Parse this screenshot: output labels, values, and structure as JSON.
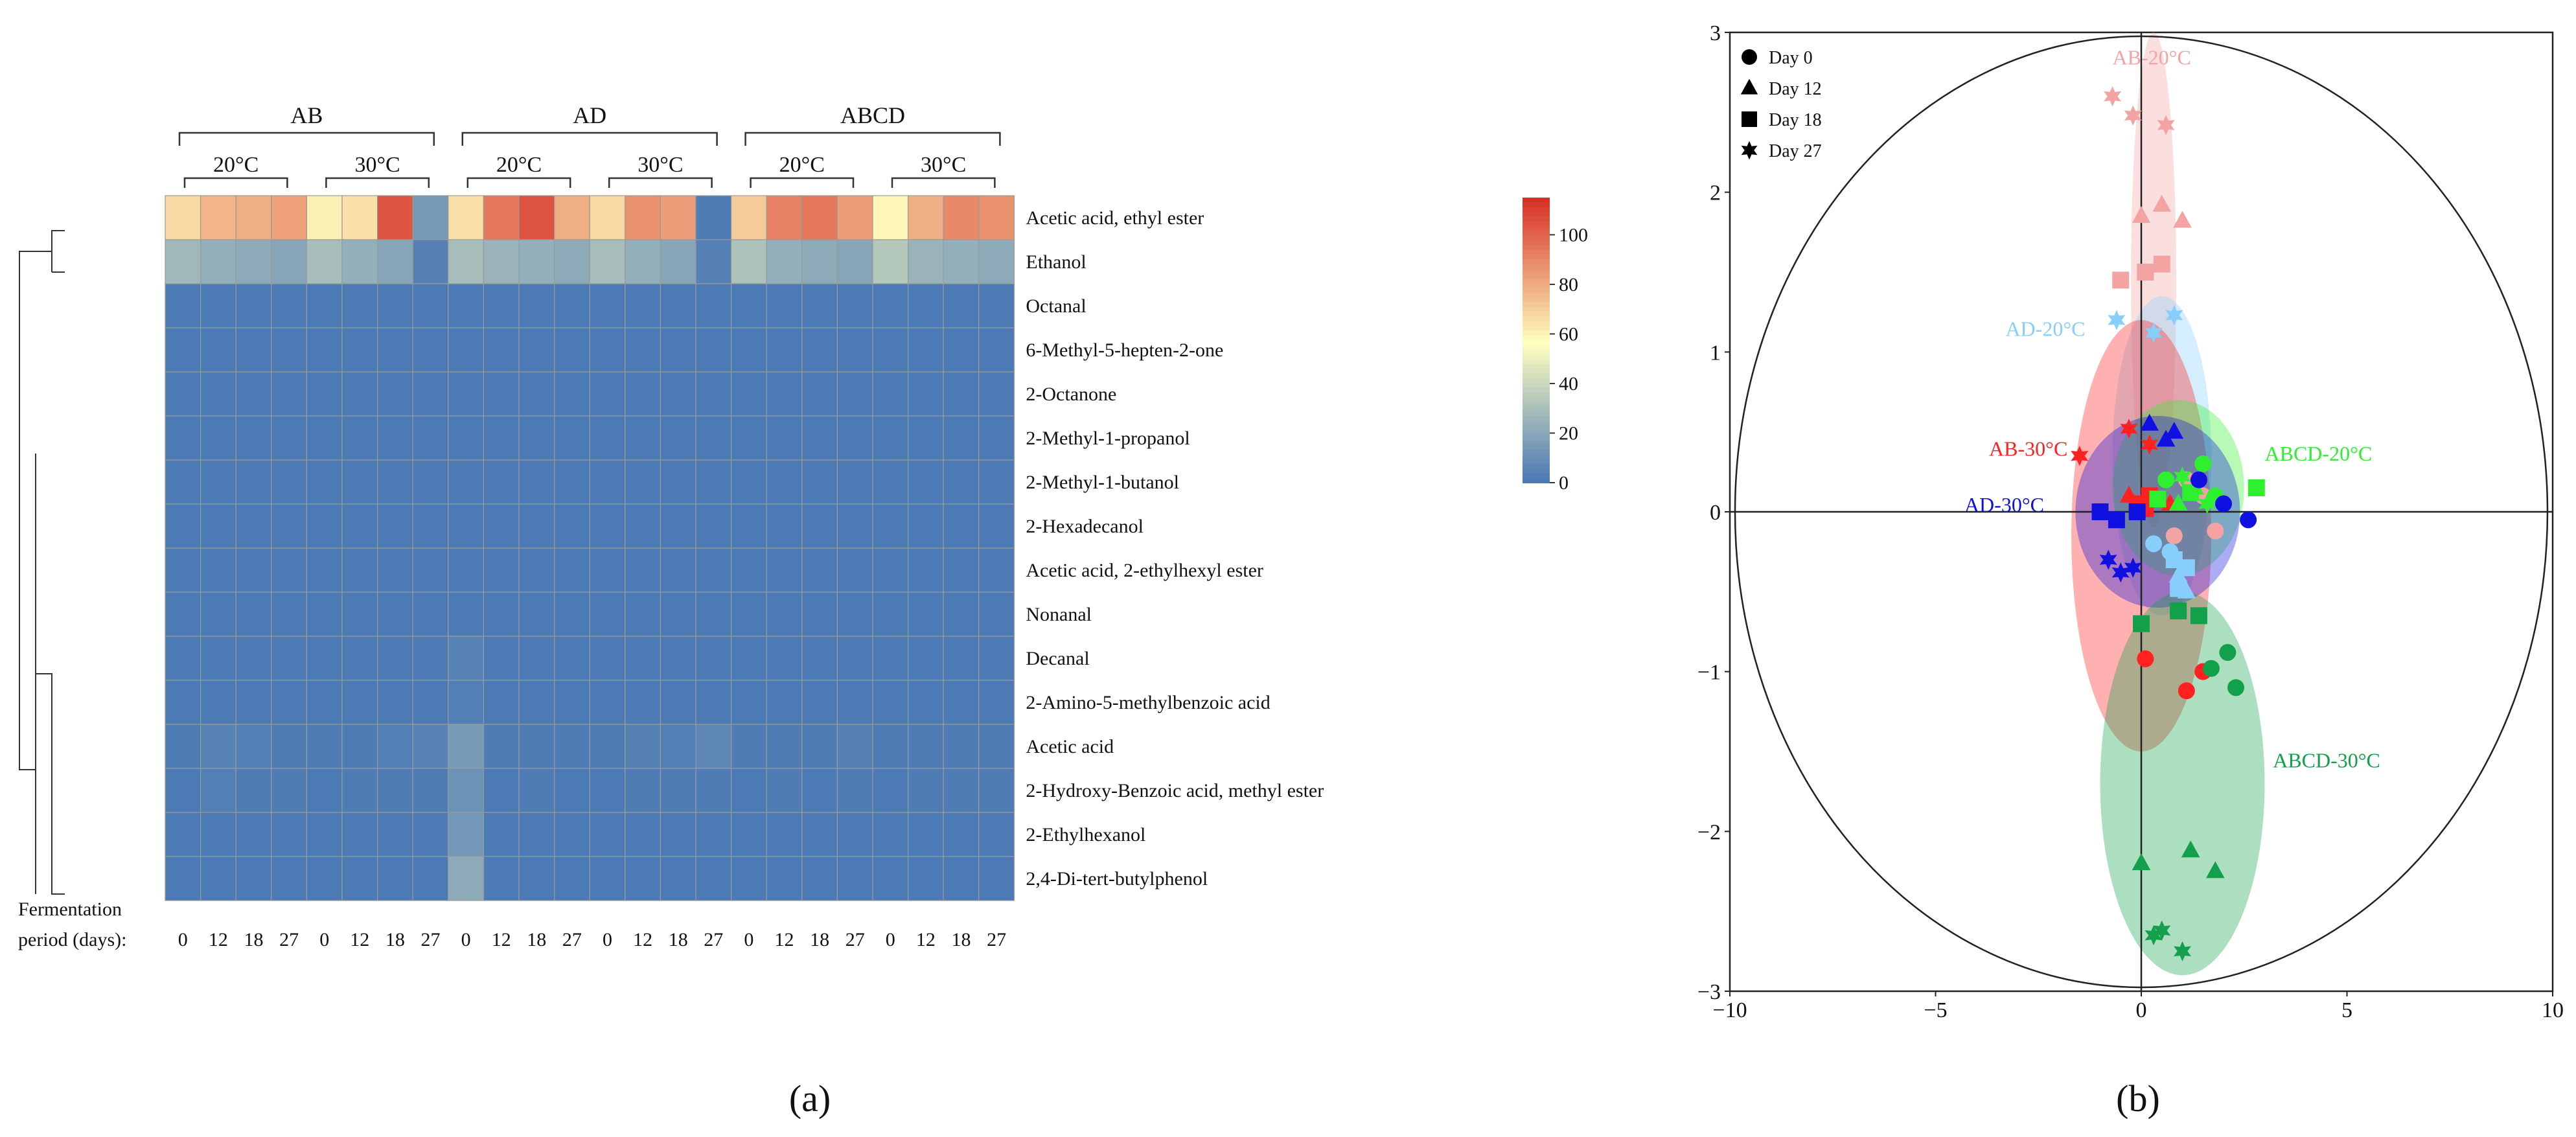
{
  "panels": {
    "a": "(a)",
    "b": "(b)"
  },
  "chart_data": [
    {
      "type": "heatmap",
      "title": "",
      "groups": [
        {
          "name": "AB",
          "temps": [
            "20°C",
            "30°C"
          ]
        },
        {
          "name": "AD",
          "temps": [
            "20°C",
            "30°C"
          ]
        },
        {
          "name": "ABCD",
          "temps": [
            "20°C",
            "30°C"
          ]
        }
      ],
      "columns": [
        "0",
        "12",
        "18",
        "27",
        "0",
        "12",
        "18",
        "27",
        "0",
        "12",
        "18",
        "27",
        "0",
        "12",
        "18",
        "27",
        "0",
        "12",
        "18",
        "27",
        "0",
        "12",
        "18",
        "27"
      ],
      "xlabel_line1": "Fermentation",
      "xlabel_line2": "period (days):",
      "rows": [
        "Acetic acid, ethyl ester",
        "Ethanol",
        "Octanal",
        "6-Methyl-5-hepten-2-one",
        "2-Octanone",
        "2-Methyl-1-propanol",
        "2-Methyl-1-butanol",
        "2-Hexadecanol",
        "Acetic acid, 2-ethylhexyl ester",
        "Nonanal",
        "Decanal",
        "2-Amino-5-methylbenzoic  acid",
        "Acetic acid",
        "2-Hydroxy-Benzoic acid, methyl ester",
        "2-Ethylhexanol",
        "2,4-Di-tert-butylphenol"
      ],
      "values": [
        [
          68,
          78,
          80,
          84,
          62,
          66,
          105,
          15,
          66,
          95,
          105,
          80,
          68,
          88,
          85,
          3,
          72,
          92,
          95,
          85,
          60,
          80,
          90,
          88
        ],
        [
          28,
          24,
          22,
          20,
          30,
          24,
          20,
          5,
          30,
          26,
          24,
          22,
          30,
          24,
          20,
          5,
          32,
          24,
          22,
          20,
          34,
          26,
          24,
          22
        ],
        [
          2,
          2,
          2,
          2,
          2,
          2,
          2,
          2,
          2,
          2,
          2,
          2,
          2,
          2,
          2,
          2,
          2,
          2,
          2,
          2,
          2,
          2,
          2,
          2
        ],
        [
          2,
          2,
          2,
          2,
          2,
          2,
          2,
          2,
          2,
          2,
          2,
          2,
          2,
          2,
          2,
          2,
          2,
          2,
          2,
          2,
          2,
          2,
          2,
          2
        ],
        [
          2,
          2,
          2,
          2,
          2,
          2,
          2,
          2,
          2,
          2,
          2,
          2,
          2,
          2,
          2,
          2,
          2,
          2,
          2,
          2,
          2,
          2,
          2,
          2
        ],
        [
          2,
          2,
          2,
          2,
          2,
          2,
          2,
          2,
          2,
          2,
          2,
          2,
          2,
          2,
          2,
          2,
          2,
          2,
          2,
          2,
          2,
          2,
          2,
          2
        ],
        [
          2,
          2,
          2,
          2,
          2,
          2,
          2,
          2,
          2,
          2,
          2,
          2,
          2,
          2,
          2,
          2,
          2,
          2,
          2,
          2,
          2,
          2,
          2,
          2
        ],
        [
          2,
          2,
          2,
          2,
          2,
          2,
          2,
          2,
          2,
          2,
          2,
          2,
          2,
          2,
          2,
          2,
          2,
          2,
          2,
          2,
          2,
          2,
          2,
          2
        ],
        [
          2,
          2,
          2,
          2,
          2,
          2,
          2,
          2,
          2,
          2,
          2,
          2,
          2,
          2,
          2,
          2,
          2,
          2,
          2,
          2,
          2,
          2,
          2,
          2
        ],
        [
          2,
          2,
          2,
          2,
          2,
          2,
          2,
          2,
          2,
          2,
          2,
          2,
          2,
          2,
          2,
          2,
          2,
          2,
          2,
          2,
          2,
          2,
          2,
          2
        ],
        [
          2,
          2,
          2,
          2,
          2,
          2,
          2,
          2,
          6,
          2,
          2,
          2,
          2,
          2,
          2,
          2,
          2,
          2,
          2,
          2,
          2,
          2,
          2,
          2
        ],
        [
          2,
          2,
          2,
          2,
          2,
          2,
          2,
          2,
          4,
          2,
          2,
          2,
          2,
          2,
          2,
          2,
          2,
          2,
          2,
          2,
          2,
          2,
          2,
          2
        ],
        [
          3,
          6,
          4,
          3,
          3,
          3,
          4,
          6,
          16,
          3,
          3,
          3,
          3,
          5,
          4,
          8,
          3,
          3,
          3,
          5,
          3,
          3,
          3,
          3
        ],
        [
          2,
          4,
          3,
          3,
          2,
          3,
          3,
          3,
          12,
          2,
          3,
          2,
          2,
          3,
          3,
          3,
          2,
          3,
          2,
          3,
          2,
          3,
          3,
          3
        ],
        [
          2,
          2,
          2,
          2,
          2,
          2,
          2,
          2,
          14,
          2,
          2,
          2,
          2,
          2,
          2,
          2,
          2,
          2,
          2,
          2,
          2,
          2,
          2,
          2
        ],
        [
          2,
          2,
          2,
          2,
          2,
          2,
          2,
          2,
          22,
          2,
          2,
          2,
          2,
          2,
          2,
          2,
          2,
          2,
          2,
          2,
          2,
          2,
          2,
          2
        ]
      ],
      "colorbar": {
        "ticks": [
          "100",
          "80",
          "60",
          "40",
          "20",
          "0"
        ],
        "tick_values": [
          100,
          80,
          60,
          40,
          20,
          0
        ],
        "range": [
          0,
          115
        ]
      },
      "colors": {
        "low": "#4575b4",
        "mid": "#ffffbf",
        "high": "#d73027"
      }
    },
    {
      "type": "scatter",
      "title": "",
      "xlim": [
        -10,
        10
      ],
      "ylim": [
        -3,
        3
      ],
      "xticks": [
        "−10",
        "−5",
        "0",
        "5",
        "10"
      ],
      "xtick_values": [
        -10,
        -5,
        0,
        5,
        10
      ],
      "yticks": [
        "3",
        "2",
        "1",
        "0",
        "−1",
        "−2",
        "−3"
      ],
      "ytick_values": [
        3,
        2,
        1,
        0,
        -1,
        -2,
        -3
      ],
      "legend": {
        "position": "top-left",
        "entries": [
          {
            "marker": "circle",
            "label": "Day 0"
          },
          {
            "marker": "triangle",
            "label": "Day 12"
          },
          {
            "marker": "square",
            "label": "Day 18"
          },
          {
            "marker": "star",
            "label": "Day 27"
          }
        ]
      },
      "clusters": [
        {
          "name": "AB-20°C",
          "color": "#f4a3a3",
          "ellipse": {
            "cx": 0.3,
            "cy": 1.45,
            "rx": 0.55,
            "ry": 1.55
          },
          "label_at": [
            -0.7,
            2.8
          ],
          "points": [
            {
              "x": 1.1,
              "y": 0.2,
              "m": "circle"
            },
            {
              "x": 1.5,
              "y": 0.1,
              "m": "circle"
            },
            {
              "x": 0.8,
              "y": -0.15,
              "m": "circle"
            },
            {
              "x": 1.8,
              "y": -0.12,
              "m": "circle"
            },
            {
              "x": 0.0,
              "y": 1.85,
              "m": "triangle"
            },
            {
              "x": 0.5,
              "y": 1.92,
              "m": "triangle"
            },
            {
              "x": 1.0,
              "y": 1.82,
              "m": "triangle"
            },
            {
              "x": 0.1,
              "y": 1.5,
              "m": "square"
            },
            {
              "x": 0.5,
              "y": 1.55,
              "m": "square"
            },
            {
              "x": -0.5,
              "y": 1.45,
              "m": "square"
            },
            {
              "x": -0.7,
              "y": 2.6,
              "m": "star"
            },
            {
              "x": -0.2,
              "y": 2.48,
              "m": "star"
            },
            {
              "x": 0.6,
              "y": 2.42,
              "m": "star"
            }
          ]
        },
        {
          "name": "AD-20°C",
          "color": "#87cefa",
          "ellipse": {
            "cx": 0.5,
            "cy": 0.35,
            "rx": 1.2,
            "ry": 1.0
          },
          "label_at": [
            -3.3,
            1.1
          ],
          "points": [
            {
              "x": 0.3,
              "y": -0.2,
              "m": "circle"
            },
            {
              "x": 0.7,
              "y": -0.25,
              "m": "circle"
            },
            {
              "x": 0.9,
              "y": -0.4,
              "m": "triangle"
            },
            {
              "x": 1.1,
              "y": -0.5,
              "m": "triangle"
            },
            {
              "x": 0.8,
              "y": -0.3,
              "m": "square"
            },
            {
              "x": 1.1,
              "y": -0.35,
              "m": "square"
            },
            {
              "x": 0.9,
              "y": -0.48,
              "m": "square"
            },
            {
              "x": -0.6,
              "y": 1.2,
              "m": "star"
            },
            {
              "x": 0.3,
              "y": 1.12,
              "m": "star"
            },
            {
              "x": 0.8,
              "y": 1.23,
              "m": "star"
            }
          ]
        },
        {
          "name": "AB-30°C",
          "color": "#ff2020",
          "ellipse": {
            "cx": 0.0,
            "cy": -0.15,
            "rx": 1.7,
            "ry": 1.35
          },
          "label_at": [
            -3.7,
            0.35
          ],
          "points": [
            {
              "x": 0.1,
              "y": -0.92,
              "m": "circle"
            },
            {
              "x": 1.1,
              "y": -1.12,
              "m": "circle"
            },
            {
              "x": 1.5,
              "y": -1.0,
              "m": "circle"
            },
            {
              "x": -0.3,
              "y": 0.1,
              "m": "triangle"
            },
            {
              "x": 0.7,
              "y": 0.05,
              "m": "triangle"
            },
            {
              "x": 0.2,
              "y": 0.1,
              "m": "square"
            },
            {
              "x": -0.1,
              "y": 0.05,
              "m": "square"
            },
            {
              "x": 0.4,
              "y": 0.08,
              "m": "square"
            },
            {
              "x": 0.1,
              "y": 0.02,
              "m": "square"
            },
            {
              "x": -1.5,
              "y": 0.35,
              "m": "star"
            },
            {
              "x": -0.3,
              "y": 0.52,
              "m": "star"
            },
            {
              "x": 0.2,
              "y": 0.42,
              "m": "star"
            }
          ]
        },
        {
          "name": "ABCD-20°C",
          "color": "#2ef02e",
          "ellipse": {
            "cx": 0.9,
            "cy": 0.15,
            "rx": 1.6,
            "ry": 0.55
          },
          "label_at": [
            3.0,
            0.32
          ],
          "points": [
            {
              "x": 1.5,
              "y": 0.3,
              "m": "circle"
            },
            {
              "x": 0.6,
              "y": 0.2,
              "m": "circle"
            },
            {
              "x": 1.8,
              "y": 0.1,
              "m": "circle"
            },
            {
              "x": 0.9,
              "y": 0.05,
              "m": "triangle"
            },
            {
              "x": 1.3,
              "y": 0.15,
              "m": "triangle"
            },
            {
              "x": 2.8,
              "y": 0.15,
              "m": "square"
            },
            {
              "x": 1.2,
              "y": 0.12,
              "m": "square"
            },
            {
              "x": 0.4,
              "y": 0.08,
              "m": "square"
            },
            {
              "x": 1.0,
              "y": 0.22,
              "m": "star"
            },
            {
              "x": 1.6,
              "y": 0.05,
              "m": "star"
            }
          ]
        },
        {
          "name": "AD-30°C",
          "color": "#1010e0",
          "ellipse": {
            "cx": 0.4,
            "cy": 0.0,
            "rx": 2.0,
            "ry": 0.6
          },
          "label_at": [
            -4.3,
            0.0
          ],
          "points": [
            {
              "x": 2.0,
              "y": 0.05,
              "m": "circle"
            },
            {
              "x": 2.6,
              "y": -0.05,
              "m": "circle"
            },
            {
              "x": 1.4,
              "y": 0.2,
              "m": "circle"
            },
            {
              "x": 0.2,
              "y": 0.55,
              "m": "triangle"
            },
            {
              "x": 0.8,
              "y": 0.5,
              "m": "triangle"
            },
            {
              "x": 0.6,
              "y": 0.45,
              "m": "triangle"
            },
            {
              "x": -1.0,
              "y": 0.0,
              "m": "square"
            },
            {
              "x": -0.6,
              "y": -0.05,
              "m": "square"
            },
            {
              "x": -0.1,
              "y": 0.0,
              "m": "square"
            },
            {
              "x": -0.8,
              "y": -0.3,
              "m": "star"
            },
            {
              "x": -0.5,
              "y": -0.38,
              "m": "star"
            },
            {
              "x": -0.2,
              "y": -0.35,
              "m": "star"
            }
          ]
        },
        {
          "name": "ABCD-30°C",
          "color": "#12a04a",
          "ellipse": {
            "cx": 1.0,
            "cy": -1.7,
            "rx": 2.0,
            "ry": 1.2
          },
          "label_at": [
            3.2,
            -1.6
          ],
          "points": [
            {
              "x": 1.7,
              "y": -0.98,
              "m": "circle"
            },
            {
              "x": 2.3,
              "y": -1.1,
              "m": "circle"
            },
            {
              "x": 2.1,
              "y": -0.88,
              "m": "circle"
            },
            {
              "x": 0.0,
              "y": -2.2,
              "m": "triangle"
            },
            {
              "x": 1.2,
              "y": -2.12,
              "m": "triangle"
            },
            {
              "x": 1.8,
              "y": -2.25,
              "m": "triangle"
            },
            {
              "x": 0.0,
              "y": -0.7,
              "m": "square"
            },
            {
              "x": 0.9,
              "y": -0.62,
              "m": "square"
            },
            {
              "x": 1.4,
              "y": -0.65,
              "m": "square"
            },
            {
              "x": 0.3,
              "y": -2.65,
              "m": "star"
            },
            {
              "x": 0.5,
              "y": -2.62,
              "m": "star"
            },
            {
              "x": 1.0,
              "y": -2.75,
              "m": "star"
            }
          ]
        }
      ]
    }
  ]
}
